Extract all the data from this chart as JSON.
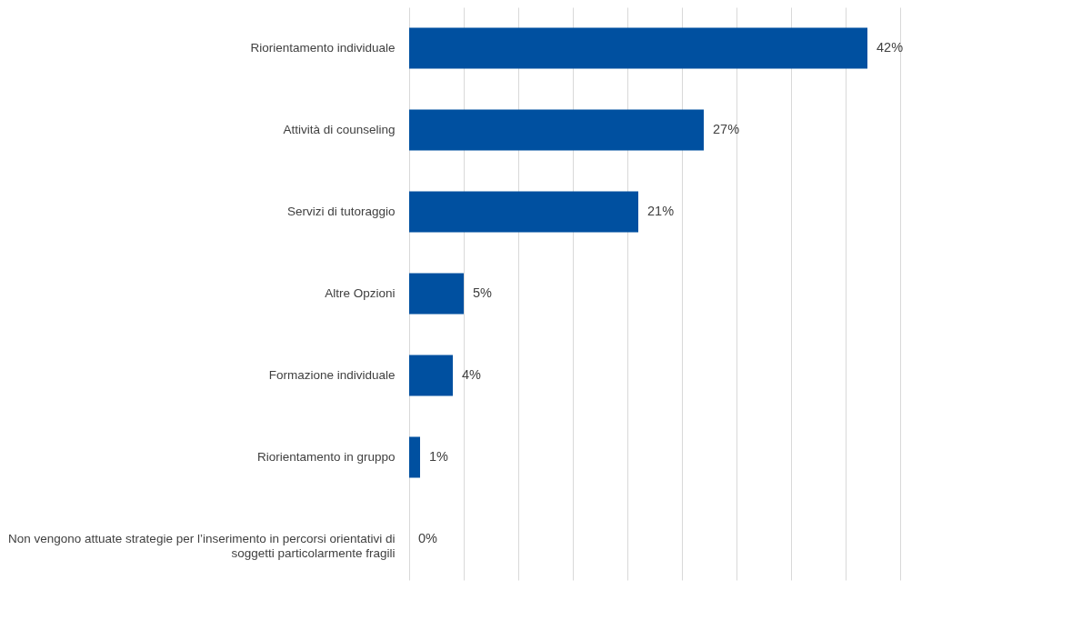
{
  "chart_data": {
    "type": "bar",
    "orientation": "horizontal",
    "categories": [
      "Riorientamento individuale",
      "Attività di counseling",
      "Servizi di tutoraggio",
      "Altre Opzioni",
      "Formazione individuale",
      "Riorientamento in gruppo",
      "Non vengono attuate strategie per l’inserimento in percorsi orientativi di soggetti particolarmente fragili"
    ],
    "values": [
      42,
      27,
      21,
      5,
      4,
      1,
      0
    ],
    "value_labels": [
      "42%",
      "27%",
      "21%",
      "5%",
      "4%",
      "1%",
      "0%"
    ],
    "color": "#0050a0",
    "xlim": [
      0,
      45
    ],
    "xticks": [
      0,
      5,
      10,
      15,
      20,
      25,
      30,
      35,
      40,
      45
    ],
    "grid": "x",
    "tick_labels": "y"
  }
}
